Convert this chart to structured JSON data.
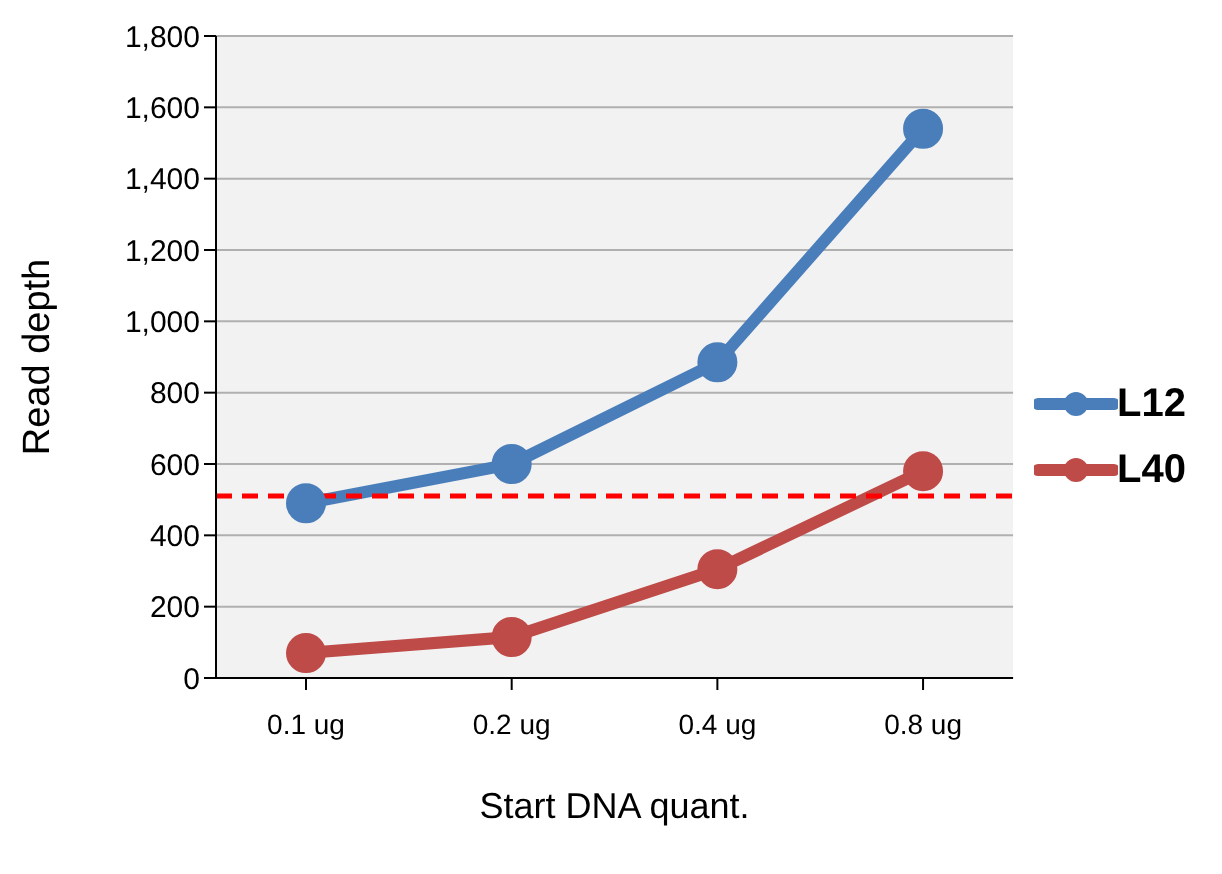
{
  "chart_data": {
    "type": "line",
    "xlabel": "Start DNA quant.",
    "ylabel": "Read depth",
    "categories": [
      "0.1 ug",
      "0.2 ug",
      "0.4 ug",
      "0.8 ug"
    ],
    "series": [
      {
        "name": "L12",
        "color": "#4a7ebb",
        "values": [
          490,
          600,
          885,
          1540
        ]
      },
      {
        "name": "L40",
        "color": "#be4b48",
        "values": [
          70,
          115,
          305,
          580
        ]
      }
    ],
    "ylim": [
      0,
      1800
    ],
    "yticks": [
      0,
      200,
      400,
      600,
      800,
      {
        "value": 1000,
        "label": "1,000"
      },
      {
        "value": 1200,
        "label": "1,200"
      },
      {
        "value": 1400,
        "label": "1,400"
      },
      {
        "value": 1600,
        "label": "1,600"
      },
      {
        "value": 1800,
        "label": "1,800"
      }
    ],
    "ref_lines": [
      {
        "axis": "y",
        "value": 510,
        "color": "#ff0000",
        "line_style": "dashed"
      }
    ],
    "grid": "y",
    "legend": "right",
    "marker": "circle",
    "line_style": "solid"
  }
}
